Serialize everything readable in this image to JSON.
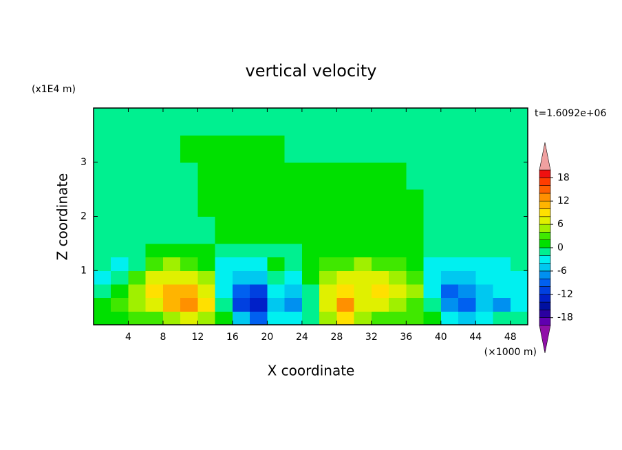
{
  "chart_data": {
    "type": "contour",
    "title": "vertical velocity",
    "xlabel": "X coordinate",
    "ylabel": "Z coordinate",
    "x_unit": "(×1000 m)",
    "y_unit": "(x1E4 m)",
    "annotation": "t=1.6092e+06",
    "xlim": [
      0,
      50
    ],
    "ylim": [
      0,
      4
    ],
    "xticks": [
      4,
      8,
      12,
      16,
      20,
      24,
      28,
      32,
      36,
      40,
      44,
      48
    ],
    "yticks": [
      1,
      2,
      3
    ],
    "x_bins": [
      0,
      2,
      4,
      6,
      8,
      10,
      12,
      14,
      16,
      18,
      20,
      22,
      24,
      26,
      28,
      30,
      32,
      34,
      36,
      38,
      40,
      42,
      44,
      46,
      48,
      50
    ],
    "y_bins": [
      0,
      0.25,
      0.5,
      0.75,
      1,
      1.25,
      1.5,
      2,
      2.5,
      3,
      3.5,
      4
    ],
    "z": [
      [
        1,
        1,
        3,
        2,
        4,
        6,
        4,
        1,
        -6,
        -10,
        -4,
        -4,
        -2,
        4,
        8,
        4,
        2,
        2,
        2,
        1,
        -4,
        -6,
        -4,
        -2,
        -1
      ],
      [
        1,
        2,
        4,
        6,
        10,
        12,
        8,
        -2,
        -12,
        -14,
        -6,
        -8,
        -2,
        6,
        12,
        6,
        6,
        4,
        3,
        -2,
        -8,
        -10,
        -6,
        -8,
        -4
      ],
      [
        -1,
        1,
        4,
        8,
        10,
        10,
        6,
        -4,
        -10,
        -12,
        -4,
        -6,
        -2,
        6,
        8,
        6,
        8,
        6,
        4,
        -4,
        -10,
        -8,
        -6,
        -4,
        -3
      ],
      [
        -3,
        -2,
        2,
        6,
        6,
        6,
        4,
        -4,
        -6,
        -6,
        -2,
        -4,
        0,
        4,
        6,
        6,
        6,
        4,
        2,
        -4,
        -6,
        -6,
        -4,
        -4,
        -3
      ],
      [
        -2,
        -3,
        -1,
        2,
        4,
        3,
        1,
        -3,
        -4,
        -3,
        1,
        -2,
        1,
        2,
        3,
        4,
        3,
        2,
        1,
        -3,
        -4,
        -3,
        -3,
        -3,
        -2
      ],
      [
        -1,
        -2,
        -1,
        1,
        1,
        1,
        0,
        -1,
        -2,
        -1,
        -1,
        -1,
        1,
        1,
        1,
        1,
        1,
        1,
        1,
        -1,
        -2,
        -2,
        -2,
        -2,
        -1
      ],
      [
        -1,
        -1,
        -1,
        -1,
        -1,
        -1,
        -1,
        1,
        1,
        1,
        1,
        1,
        1,
        1,
        1,
        1,
        1,
        1,
        1,
        -1,
        -1,
        -1,
        -2,
        -1,
        -1
      ],
      [
        -1,
        -1,
        -1,
        -1,
        -1,
        -1,
        1,
        1,
        1,
        1,
        1,
        1,
        1,
        1,
        1,
        1,
        1,
        1,
        1,
        -1,
        -1,
        -1,
        -1,
        -1,
        -1
      ],
      [
        -1,
        -1,
        -1,
        -1,
        -1,
        -1,
        1,
        1,
        1,
        1,
        1,
        1,
        1,
        1,
        1,
        1,
        1,
        1,
        -1,
        -1,
        -1,
        -1,
        -1,
        -1,
        -1
      ],
      [
        -1,
        -1,
        -1,
        -1,
        -1,
        1,
        1,
        1,
        1,
        1,
        1,
        -1,
        -1,
        -1,
        -1,
        -1,
        -1,
        -1,
        -1,
        -1,
        -1,
        -1,
        -1,
        -1,
        -1
      ],
      [
        -1,
        -1,
        -1,
        -1,
        -1,
        -1,
        -1,
        -1,
        -1,
        -1,
        -1,
        -1,
        -1,
        -1,
        -1,
        -1,
        -1,
        -1,
        -1,
        -1,
        -1,
        -1,
        -1,
        -1,
        -1
      ]
    ],
    "levels": [
      -20,
      -18,
      -16,
      -14,
      -12,
      -10,
      -8,
      -6,
      -4,
      -2,
      0,
      2,
      4,
      6,
      8,
      10,
      12,
      14,
      16,
      18,
      20
    ],
    "colors": [
      "#6000b0",
      "#2a00a0",
      "#0010a0",
      "#0020c8",
      "#0040e0",
      "#0060f0",
      "#0090f0",
      "#00c8f0",
      "#00f0f0",
      "#00f090",
      "#00e000",
      "#40e800",
      "#a0f000",
      "#e0f000",
      "#ffe000",
      "#ffb400",
      "#ff9000",
      "#ff6000",
      "#ff3c00",
      "#f01010"
    ],
    "under_color": "#9010a8",
    "over_color": "#f0a0a0",
    "cbar_ticks": [
      -18,
      -12,
      -6,
      0,
      6,
      12,
      18
    ]
  }
}
